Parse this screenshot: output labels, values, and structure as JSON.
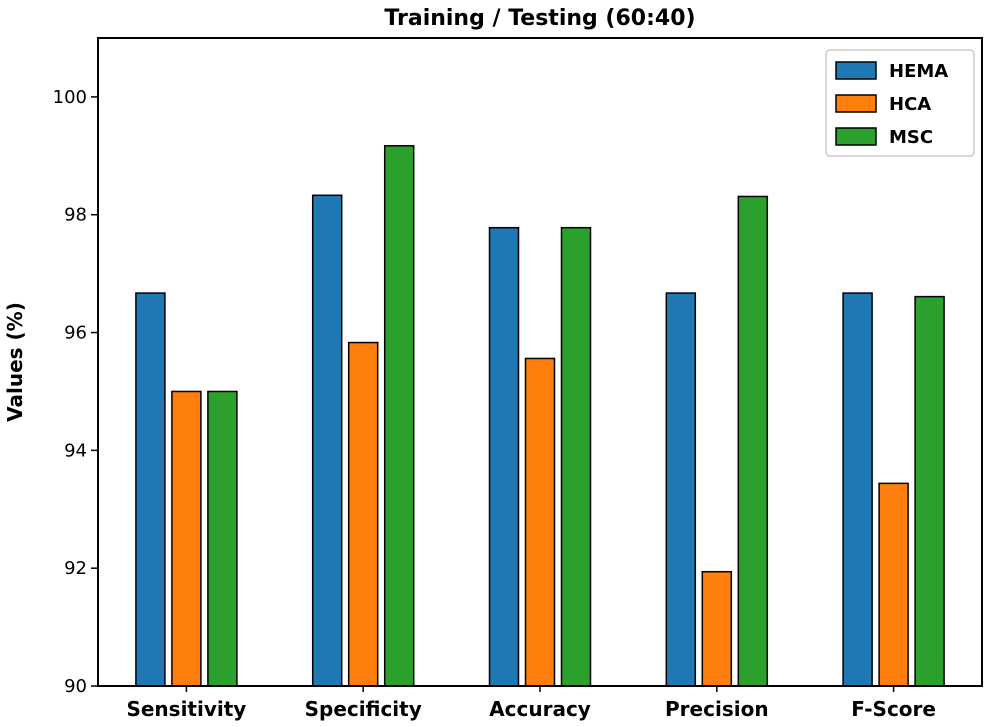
{
  "chart_data": {
    "type": "bar",
    "title": "Training / Testing (60:40)",
    "xlabel": "",
    "ylabel": "Values (%)",
    "ylim": [
      90,
      101
    ],
    "yticks": [
      90,
      92,
      94,
      96,
      98,
      100
    ],
    "categories": [
      "Sensitivity",
      "Specificity",
      "Accuracy",
      "Precision",
      "F-Score"
    ],
    "series": [
      {
        "name": "HEMA",
        "color": "#1f77b4",
        "values": [
          96.67,
          98.33,
          97.78,
          96.67,
          96.67
        ]
      },
      {
        "name": "HCA",
        "color": "#ff7f0e",
        "values": [
          95.0,
          95.83,
          95.56,
          91.94,
          93.44
        ]
      },
      {
        "name": "MSC",
        "color": "#2ca02c",
        "values": [
          95.0,
          99.17,
          97.78,
          98.31,
          96.61
        ]
      }
    ],
    "legend": {
      "position": "top-right"
    },
    "grid": false
  }
}
